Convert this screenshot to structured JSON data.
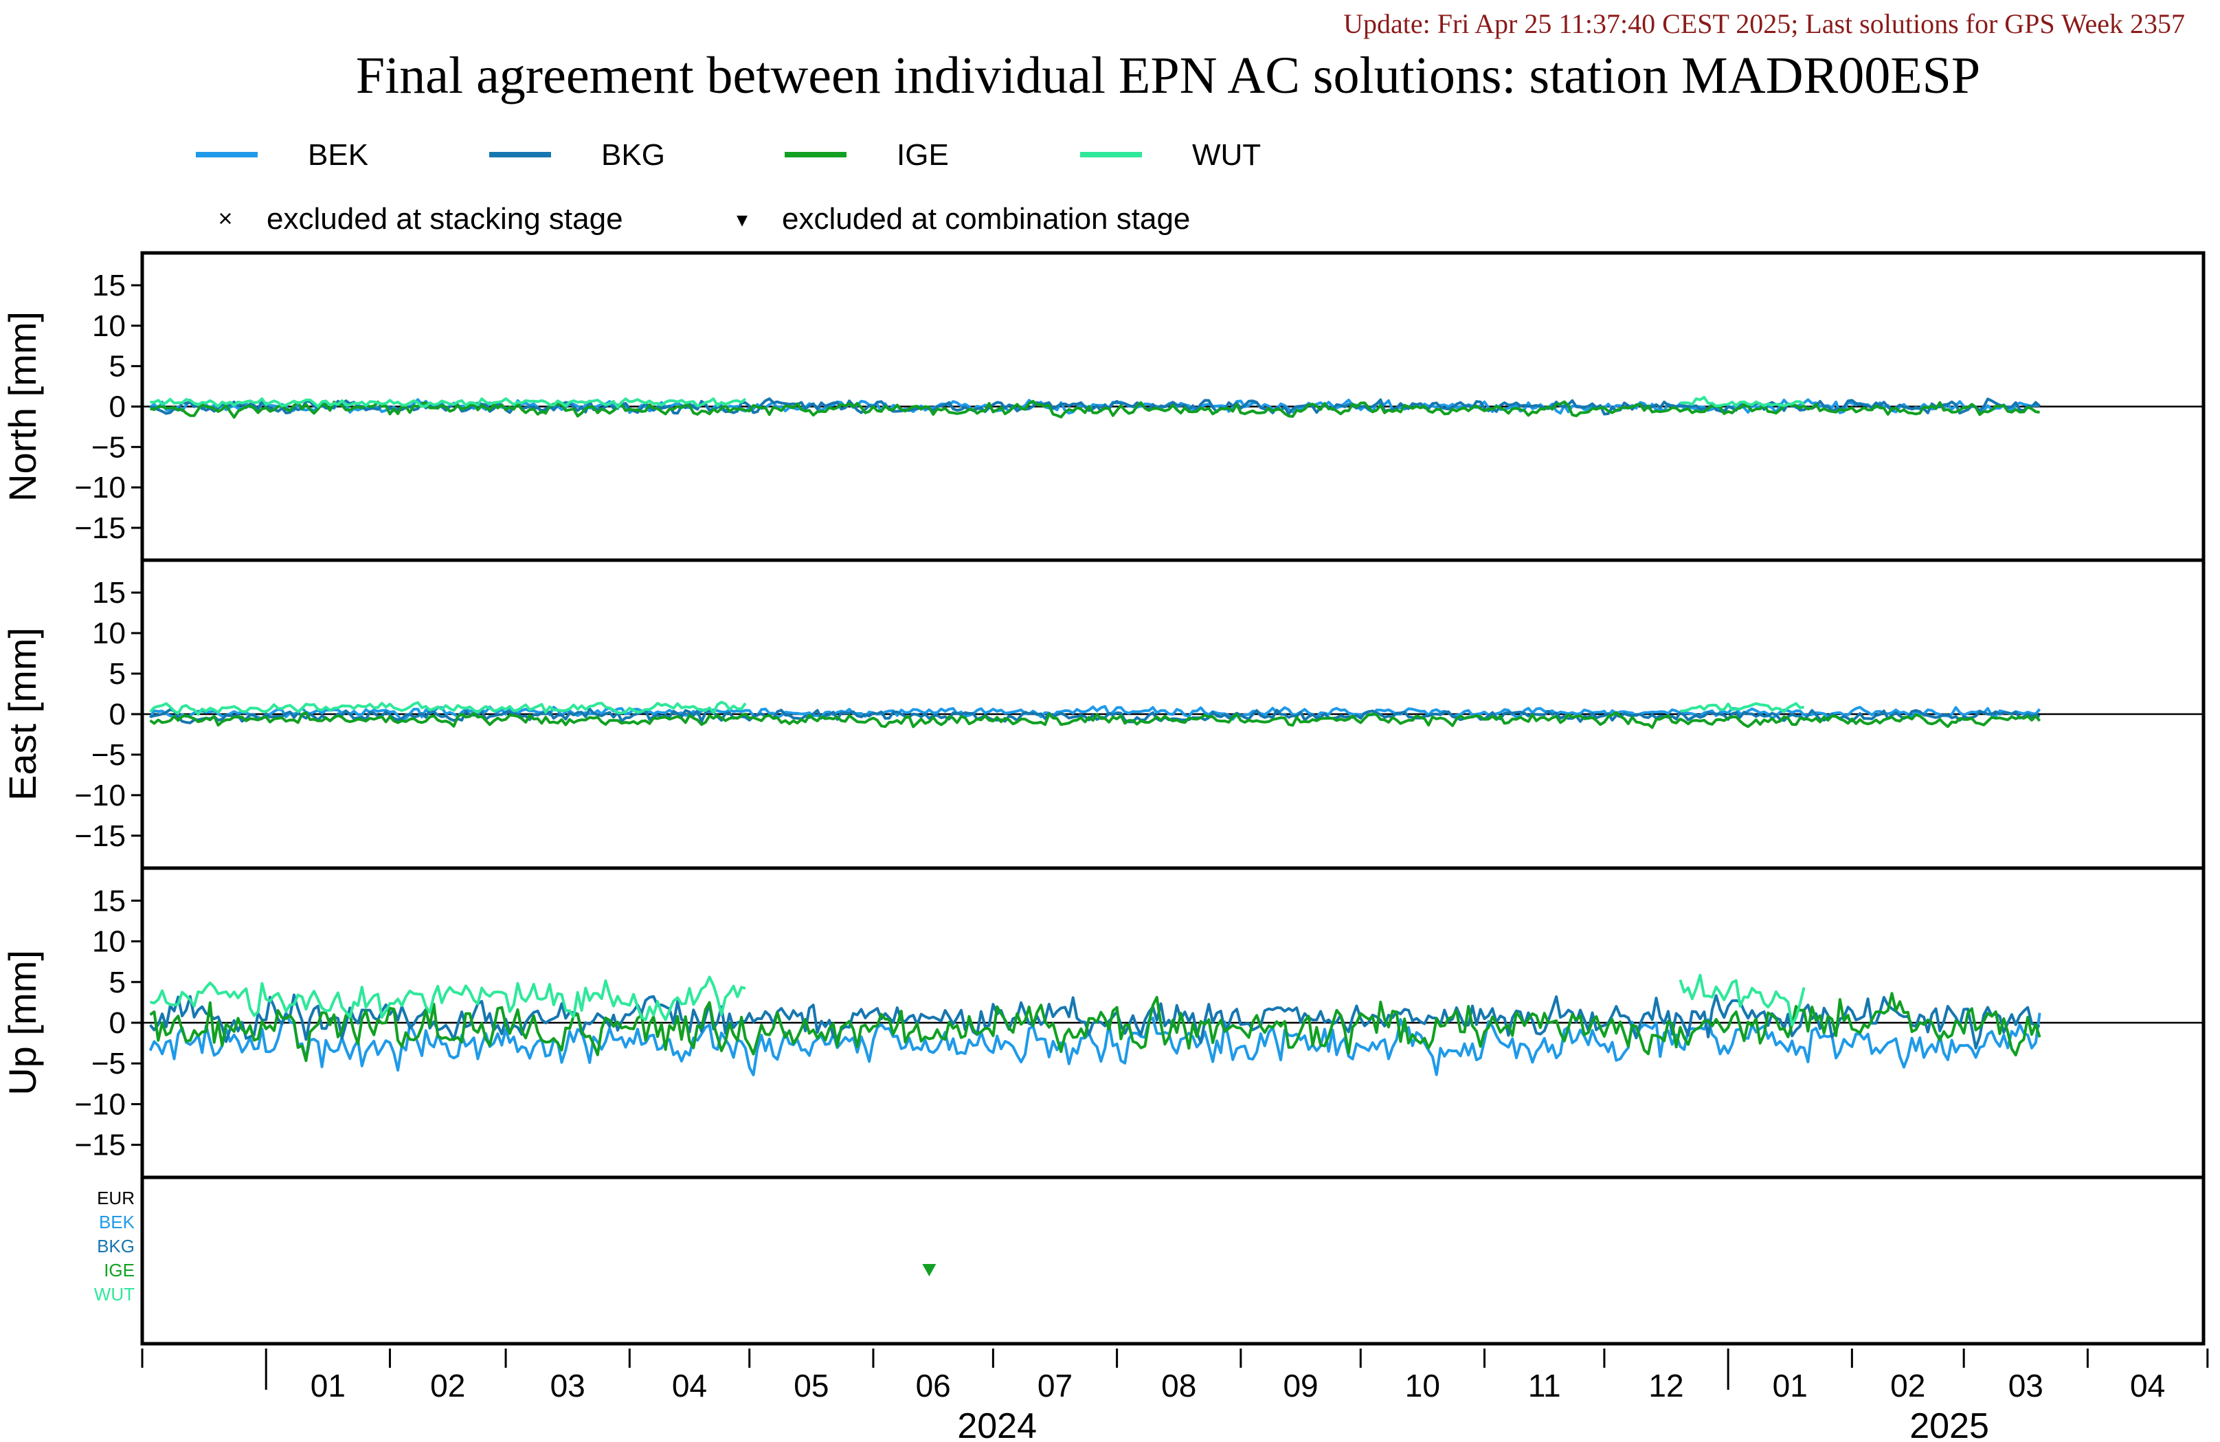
{
  "header": {
    "update_line": "Update: Fri Apr 25 11:37:40 CEST 2025; Last solutions for GPS Week 2357",
    "title": "Final agreement between individual EPN AC solutions: station MADR00ESP"
  },
  "colors": {
    "BEK": "#1f9ae8",
    "BKG": "#1677b0",
    "IGE": "#11a022",
    "WUT": "#2fe89a",
    "EUR": "#000000",
    "update_text": "#8b1a1a"
  },
  "legend": {
    "series": [
      {
        "name": "BEK",
        "color": "#1f9ae8"
      },
      {
        "name": "BKG",
        "color": "#1677b0"
      },
      {
        "name": "IGE",
        "color": "#11a022"
      },
      {
        "name": "WUT",
        "color": "#2fe89a"
      }
    ],
    "markers": [
      {
        "symbol": "×",
        "label": "excluded at stacking stage"
      },
      {
        "symbol": "▾",
        "label": "excluded at combination stage"
      }
    ]
  },
  "chart_data": {
    "type": "line",
    "x_range": [
      "2023-12-01",
      "2025-04-30"
    ],
    "panels": [
      {
        "name": "north",
        "ylabel": "North [mm]",
        "ylim": [
          -19,
          19
        ],
        "yticks": [
          15,
          10,
          5,
          0,
          -5,
          -10,
          -15
        ],
        "series": [
          {
            "name": "BEK",
            "mean_mm": 0.0,
            "noise_mm": 0.45
          },
          {
            "name": "BKG",
            "mean_mm": 0.0,
            "noise_mm": 0.5
          },
          {
            "name": "IGE",
            "mean_mm": -0.3,
            "noise_mm": 0.5
          },
          {
            "name": "WUT",
            "mean_mm": 0.5,
            "noise_mm": 0.35,
            "active_ranges": [
              [
                "2023-12-01",
                "2024-04-30"
              ],
              [
                "2024-12-20",
                "2025-01-20"
              ]
            ]
          }
        ]
      },
      {
        "name": "east",
        "ylabel": "East [mm]",
        "ylim": [
          -19,
          19
        ],
        "yticks": [
          15,
          10,
          5,
          0,
          -5,
          -10,
          -15
        ],
        "series": [
          {
            "name": "BEK",
            "mean_mm": 0.2,
            "noise_mm": 0.4
          },
          {
            "name": "BKG",
            "mean_mm": -0.2,
            "noise_mm": 0.45
          },
          {
            "name": "IGE",
            "mean_mm": -0.7,
            "noise_mm": 0.45
          },
          {
            "name": "WUT",
            "mean_mm": 0.8,
            "noise_mm": 0.4,
            "active_ranges": [
              [
                "2023-12-01",
                "2024-04-30"
              ],
              [
                "2024-12-20",
                "2025-01-20"
              ]
            ]
          }
        ]
      },
      {
        "name": "up",
        "ylabel": "Up [mm]",
        "ylim": [
          -19,
          19
        ],
        "yticks": [
          15,
          10,
          5,
          0,
          -5,
          -10,
          -15
        ],
        "series": [
          {
            "name": "BEK",
            "mean_mm": -2.5,
            "noise_mm": 1.6
          },
          {
            "name": "BKG",
            "mean_mm": 0.5,
            "noise_mm": 1.6
          },
          {
            "name": "IGE",
            "mean_mm": -0.5,
            "noise_mm": 1.8
          },
          {
            "name": "WUT",
            "mean_mm": 3.0,
            "noise_mm": 1.5,
            "active_ranges": [
              [
                "2023-12-01",
                "2024-04-30"
              ],
              [
                "2024-12-20",
                "2025-01-20"
              ]
            ]
          }
        ]
      }
    ],
    "exclusion_panel": {
      "rows": [
        "EUR",
        "BEK",
        "BKG",
        "IGE",
        "WUT"
      ],
      "events": [
        {
          "date": "2024-06-15",
          "row": "IGE",
          "type": "excluded at combination stage"
        }
      ]
    },
    "x_month_labels": [
      "01",
      "02",
      "03",
      "04",
      "05",
      "06",
      "07",
      "08",
      "09",
      "10",
      "11",
      "12",
      "01",
      "02",
      "03",
      "04"
    ],
    "x_year_labels": [
      "2024",
      "2025"
    ],
    "zero_line": true,
    "grid": false,
    "legend_position": "top"
  }
}
